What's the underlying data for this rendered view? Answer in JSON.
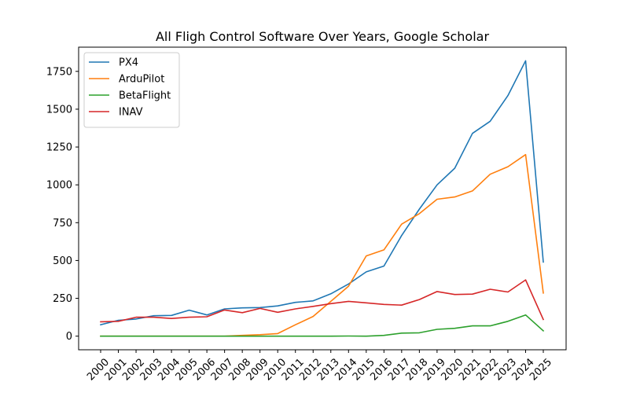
{
  "chart_data": {
    "type": "line",
    "title": "All Fligh Control Software Over Years, Google Scholar",
    "xlabel": "",
    "ylabel": "",
    "x": [
      "2000",
      "2001",
      "2002",
      "2003",
      "2004",
      "2005",
      "2006",
      "2007",
      "2008",
      "2009",
      "2010",
      "2011",
      "2012",
      "2013",
      "2014",
      "2015",
      "2016",
      "2017",
      "2018",
      "2019",
      "2020",
      "2021",
      "2022",
      "2023",
      "2024",
      "2025"
    ],
    "ylim": [
      -90,
      1910
    ],
    "yticks": [
      0,
      250,
      500,
      750,
      1000,
      1250,
      1500,
      1750
    ],
    "grid": false,
    "legend_position": "top-left",
    "series": [
      {
        "name": "PX4",
        "color": "#1f77b4",
        "values": [
          75,
          105,
          113,
          135,
          137,
          172,
          140,
          180,
          187,
          189,
          200,
          223,
          233,
          280,
          345,
          425,
          463,
          665,
          840,
          1000,
          1110,
          1340,
          1420,
          1590,
          1820,
          490
        ]
      },
      {
        "name": "ArduPilot",
        "color": "#ff7f0e",
        "values": [
          0,
          0,
          0,
          0,
          0,
          0,
          0,
          0,
          5,
          10,
          17,
          75,
          130,
          230,
          330,
          530,
          570,
          740,
          810,
          905,
          920,
          960,
          1070,
          1120,
          1200,
          285
        ]
      },
      {
        "name": "BetaFlight",
        "color": "#2ca02c",
        "values": [
          0,
          0,
          0,
          0,
          0,
          0,
          0,
          0,
          0,
          0,
          0,
          0,
          0,
          0,
          1,
          0,
          5,
          20,
          22,
          45,
          52,
          68,
          68,
          98,
          140,
          35
        ]
      },
      {
        "name": "INAV",
        "color": "#d62728",
        "values": [
          95,
          98,
          125,
          125,
          117,
          125,
          128,
          173,
          155,
          183,
          158,
          180,
          197,
          215,
          230,
          220,
          210,
          205,
          242,
          295,
          275,
          278,
          310,
          292,
          372,
          110
        ]
      }
    ]
  }
}
